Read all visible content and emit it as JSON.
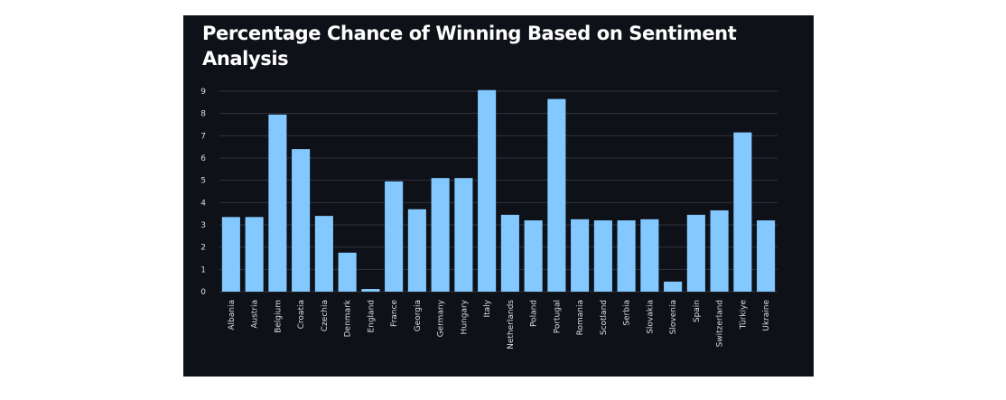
{
  "chart_data": {
    "type": "bar",
    "title": "Percentage Chance of Winning Based on Sentiment Analysis",
    "xlabel": "",
    "ylabel": "",
    "categories": [
      "Albania",
      "Austria",
      "Belgium",
      "Croatia",
      "Czechia",
      "Denmark",
      "England",
      "France",
      "Georgia",
      "Germany",
      "Hungary",
      "Italy",
      "Netherlands",
      "Poland",
      "Portugal",
      "Romania",
      "Scotland",
      "Serbia",
      "Slovakia",
      "Slovenia",
      "Spain",
      "Switzerland",
      "Türkiye",
      "Ukraine"
    ],
    "values": [
      3.35,
      3.35,
      7.95,
      6.4,
      3.4,
      1.75,
      0.12,
      4.95,
      3.7,
      5.1,
      5.1,
      9.05,
      3.45,
      3.2,
      8.65,
      3.25,
      3.2,
      3.2,
      3.25,
      0.45,
      3.45,
      3.65,
      7.15,
      3.2
    ],
    "ylim": [
      0,
      9
    ],
    "yticks": [
      "0",
      "1",
      "2",
      "3",
      "4",
      "5",
      "6",
      "7",
      "8",
      "9"
    ],
    "grid": true,
    "legend": "none",
    "colors": {
      "background": "#0e1117",
      "bar": "#83c9ff",
      "grid": "#31333f",
      "title": "#ffffff",
      "tick": "#d8dbe0"
    }
  }
}
